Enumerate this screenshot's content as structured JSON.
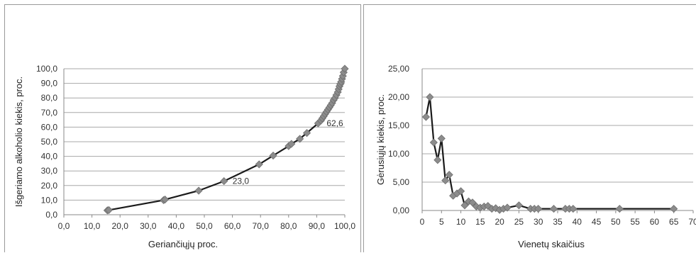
{
  "chart_data": [
    {
      "type": "line",
      "markers": "diamond",
      "xlabel": "Geriančiųjų proc.",
      "ylabel": "Išgeriamo alkoholio kiekis, proc.",
      "xlim": [
        0,
        100
      ],
      "ylim": [
        0,
        100
      ],
      "x_ticks": [
        "0,0",
        "10,0",
        "20,0",
        "30,0",
        "40,0",
        "50,0",
        "60,0",
        "70,0",
        "80,0",
        "90,0",
        "100,0"
      ],
      "y_ticks": [
        "0,0",
        "10,0",
        "20,0",
        "30,0",
        "40,0",
        "50,0",
        "60,0",
        "70,0",
        "80,0",
        "90,0",
        "100,0"
      ],
      "grid": "horizontal",
      "series": [
        {
          "x": [
            15.5,
            16.0,
            35.5,
            36.0,
            48.0,
            57.0,
            69.5,
            74.5,
            80.0,
            81.0,
            84.0,
            86.5,
            90.5,
            91.5,
            92.0,
            92.5,
            93.0,
            93.5,
            94.0,
            94.5,
            95.0,
            95.5,
            96.0,
            96.5,
            97.0,
            97.5,
            97.8,
            98.1,
            98.4,
            98.7,
            99.0,
            99.3,
            99.6,
            100.0
          ],
          "y": [
            3.0,
            3.2,
            10.0,
            10.4,
            16.5,
            23.0,
            34.5,
            40.5,
            47.0,
            48.5,
            52.0,
            56.0,
            62.6,
            64.5,
            66.0,
            67.5,
            69.0,
            70.5,
            72.0,
            73.5,
            75.0,
            76.5,
            78.5,
            80.0,
            82.0,
            84.0,
            86.0,
            88.0,
            89.5,
            91.0,
            93.0,
            95.0,
            97.5,
            100.0
          ]
        }
      ],
      "annotations": [
        {
          "text": "23,0",
          "x": 57.0,
          "y": 23.0
        },
        {
          "text": "62,6",
          "x": 90.5,
          "y": 62.6
        }
      ]
    },
    {
      "type": "line",
      "markers": "diamond",
      "xlabel": "Vienetų skaičius",
      "ylabel": "Gėrusiųjų kiekis, proc.",
      "xlim": [
        0,
        70
      ],
      "ylim": [
        0,
        25
      ],
      "x_ticks": [
        "0",
        "5",
        "10",
        "15",
        "20",
        "25",
        "30",
        "35",
        "40",
        "45",
        "50",
        "55",
        "60",
        "65",
        "70"
      ],
      "y_ticks": [
        "0,00",
        "5,00",
        "10,00",
        "15,00",
        "20,00",
        "25,00"
      ],
      "grid": "horizontal",
      "series": [
        {
          "x": [
            1,
            2,
            3,
            4,
            5,
            6,
            7,
            8,
            9,
            10,
            11,
            12,
            13,
            14,
            15,
            16,
            17,
            18,
            19,
            20,
            21,
            22,
            25,
            28,
            29,
            30,
            34,
            37,
            38,
            39,
            51,
            65
          ],
          "y": [
            16.5,
            20.0,
            12.0,
            8.9,
            12.7,
            5.3,
            6.3,
            2.6,
            3.0,
            3.4,
            0.9,
            1.6,
            1.4,
            0.7,
            0.5,
            0.7,
            0.8,
            0.3,
            0.4,
            0.1,
            0.3,
            0.5,
            0.9,
            0.3,
            0.3,
            0.3,
            0.3,
            0.3,
            0.3,
            0.3,
            0.3,
            0.3
          ]
        }
      ]
    }
  ]
}
